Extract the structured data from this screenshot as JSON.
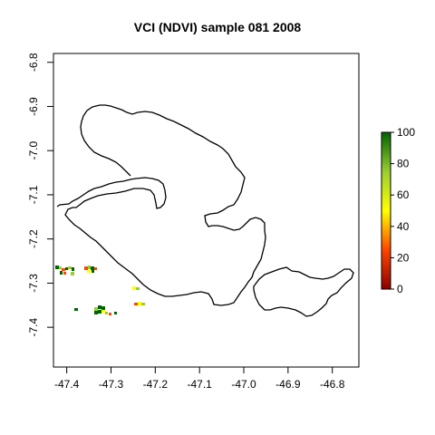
{
  "title": "VCI (NDVI) sample 081 2008",
  "map": {
    "x_ticks": [
      "-47.4",
      "-47.3",
      "-47.2",
      "-47.1",
      "-47.0",
      "-46.9",
      "-46.8"
    ],
    "y_ticks": [
      "-6.8",
      "-6.9",
      "-7.0",
      "-7.1",
      "-7.2",
      "-7.3",
      "-7.4"
    ],
    "x_tick_values": [
      -47.4,
      -47.3,
      -47.2,
      -47.1,
      -47.0,
      -46.9,
      -46.8
    ],
    "y_tick_values": [
      -6.8,
      -6.9,
      -7.0,
      -7.1,
      -7.2,
      -7.3,
      -7.4
    ],
    "xlim": [
      -47.43,
      -46.74
    ],
    "ylim": [
      -7.49,
      -6.78
    ]
  },
  "legend": {
    "ticks": [
      "0",
      "20",
      "40",
      "60",
      "80",
      "100"
    ],
    "tick_values": [
      0,
      20,
      40,
      60,
      80,
      100
    ],
    "range": [
      0,
      100
    ],
    "colors": [
      "#8b0000",
      "#ff4500",
      "#ffff00",
      "#9acd32",
      "#006400"
    ]
  }
}
